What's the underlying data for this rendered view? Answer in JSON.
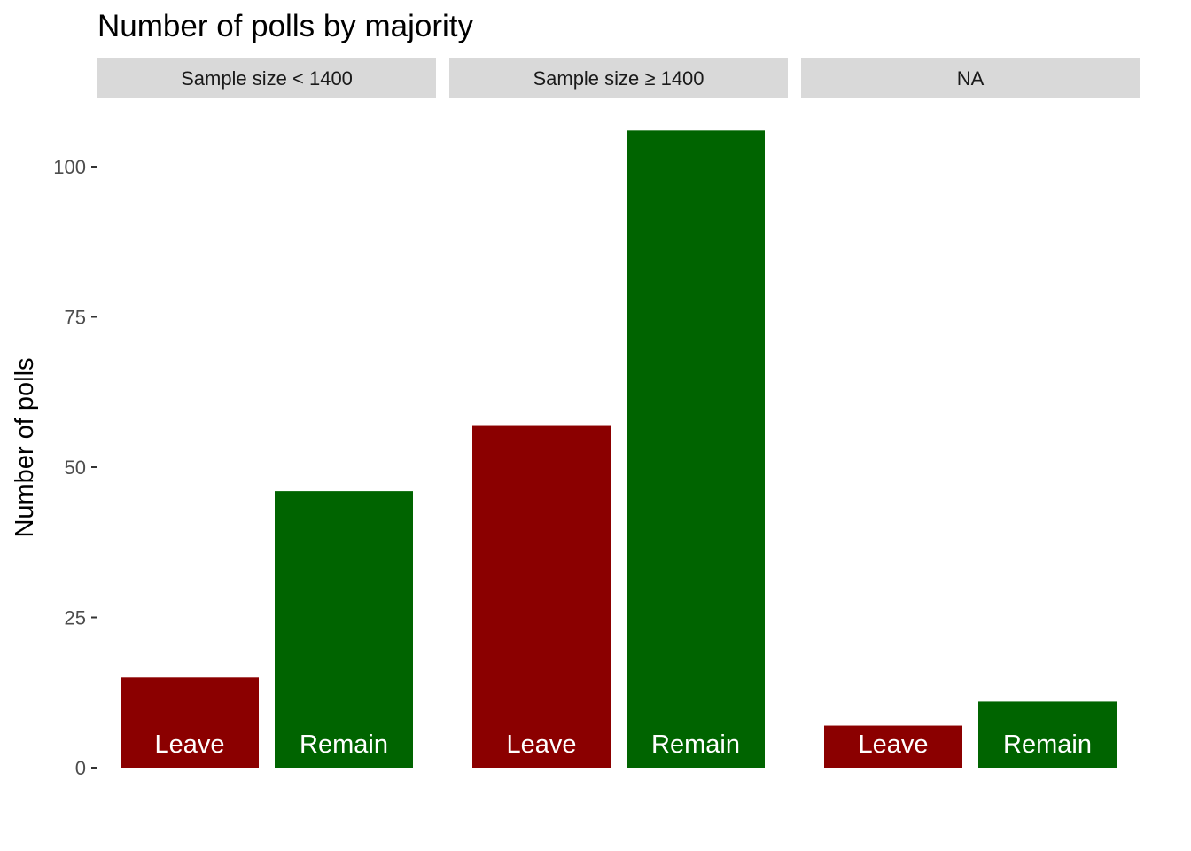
{
  "chart_data": {
    "type": "bar",
    "title": "Number of polls by majority",
    "xlabel": "",
    "ylabel": "Number of polls",
    "ylim": [
      0,
      106
    ],
    "yticks": [
      0,
      25,
      50,
      75,
      100
    ],
    "grid": false,
    "categories": [
      "Leave",
      "Remain"
    ],
    "colors": {
      "Leave": "#8b0000",
      "Remain": "#006400",
      "strip_background": "#d9d9d9"
    },
    "panels": [
      {
        "label": "Sample size < 1400",
        "values": [
          15,
          46
        ]
      },
      {
        "label": "Sample size ≥ 1400",
        "values": [
          57,
          106
        ]
      },
      {
        "label": "NA",
        "values": [
          7,
          11
        ]
      }
    ]
  }
}
